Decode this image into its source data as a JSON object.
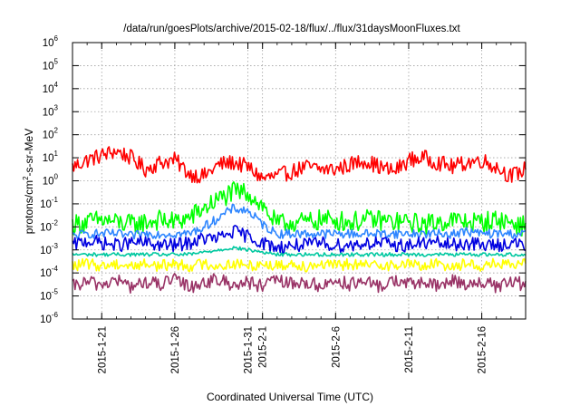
{
  "chart_data": {
    "type": "line",
    "title": "/data/run/goesPlots/archive/2015-02-18/flux/../flux/31daysMoonFluxes.txt",
    "xlabel": "Coordinated Universal Time (UTC)",
    "ylabel": {
      "prefix": "protons/cm",
      "sup": "2",
      "suffix": "-s-sr-MeV"
    },
    "y_scale": "log",
    "ylim": [
      1e-06,
      1000000.0
    ],
    "y_ticks": [
      {
        "base": "10",
        "exp": "-6"
      },
      {
        "base": "10",
        "exp": "-5"
      },
      {
        "base": "10",
        "exp": "-4"
      },
      {
        "base": "10",
        "exp": "-3"
      },
      {
        "base": "10",
        "exp": "-2"
      },
      {
        "base": "10",
        "exp": "-1"
      },
      {
        "base": "10",
        "exp": "0"
      },
      {
        "base": "10",
        "exp": "1"
      },
      {
        "base": "10",
        "exp": "2"
      },
      {
        "base": "10",
        "exp": "3"
      },
      {
        "base": "10",
        "exp": "4"
      },
      {
        "base": "10",
        "exp": "5"
      },
      {
        "base": "10",
        "exp": "6"
      }
    ],
    "xlim": [
      "2015-01-19",
      "2015-02-19"
    ],
    "x_ticks": [
      "2015-1-21",
      "2015-1-26",
      "2015-1-31",
      "2015-2-1",
      "2015-2-6",
      "2015-2-11",
      "2015-2-16"
    ],
    "grid": true,
    "legend": "none",
    "series": [
      {
        "color": "#ff0000",
        "values_log10": [
          0.6,
          0.9,
          1.1,
          1.3,
          1.0,
          0.5,
          0.8,
          0.9,
          0.3,
          0.2,
          0.7,
          0.8,
          0.6,
          0.1,
          0.2,
          0.4,
          0.6,
          0.5,
          0.5,
          0.7,
          0.9,
          0.6,
          0.4,
          0.9,
          1.0,
          0.8,
          0.6,
          0.8,
          0.9,
          0.6,
          0.2,
          0.5
        ]
      },
      {
        "color": "#00ff00",
        "values_log10": [
          -1.9,
          -1.8,
          -1.7,
          -1.8,
          -1.9,
          -1.8,
          -1.7,
          -1.8,
          -1.6,
          -1.2,
          -0.8,
          -0.5,
          -0.5,
          -1.1,
          -1.9,
          -1.8,
          -1.8,
          -1.7,
          -1.7,
          -1.8,
          -1.7,
          -1.7,
          -1.8,
          -1.8,
          -1.9,
          -1.8,
          -1.7,
          -1.8,
          -1.8,
          -1.7,
          -1.8,
          -2.0
        ]
      },
      {
        "color": "#2e86ff",
        "values_log10": [
          -2.4,
          -2.3,
          -2.3,
          -2.3,
          -2.4,
          -2.3,
          -2.3,
          -2.3,
          -2.3,
          -2.0,
          -1.6,
          -1.2,
          -1.3,
          -1.9,
          -2.3,
          -2.3,
          -2.3,
          -2.3,
          -2.3,
          -2.3,
          -2.3,
          -2.3,
          -2.3,
          -2.3,
          -2.3,
          -2.3,
          -2.3,
          -2.2,
          -2.3,
          -2.3,
          -2.3,
          -2.3
        ]
      },
      {
        "color": "#0000e0",
        "values_log10": [
          -2.8,
          -2.6,
          -2.7,
          -2.8,
          -2.7,
          -2.7,
          -2.8,
          -2.8,
          -2.7,
          -2.5,
          -2.5,
          -2.2,
          -2.4,
          -2.7,
          -2.9,
          -2.8,
          -2.8,
          -2.7,
          -2.8,
          -2.8,
          -2.7,
          -2.7,
          -2.8,
          -2.8,
          -2.7,
          -2.7,
          -2.8,
          -2.7,
          -2.8,
          -2.8,
          -2.7,
          -2.8
        ]
      },
      {
        "color": "#00c8a0",
        "values_log10": [
          -3.2,
          -3.2,
          -3.2,
          -3.2,
          -3.2,
          -3.2,
          -3.2,
          -3.2,
          -3.2,
          -3.1,
          -3.0,
          -2.9,
          -3.0,
          -3.1,
          -3.2,
          -3.2,
          -3.2,
          -3.2,
          -3.2,
          -3.2,
          -3.2,
          -3.2,
          -3.2,
          -3.2,
          -3.2,
          -3.2,
          -3.2,
          -3.2,
          -3.2,
          -3.2,
          -3.2,
          -3.2
        ]
      },
      {
        "color": "#ffff00",
        "values_log10": [
          -3.7,
          -3.6,
          -3.7,
          -3.6,
          -3.7,
          -3.6,
          -3.7,
          -3.6,
          -3.7,
          -3.6,
          -3.7,
          -3.6,
          -3.7,
          -3.6,
          -3.7,
          -3.6,
          -3.7,
          -3.6,
          -3.7,
          -3.6,
          -3.7,
          -3.6,
          -3.7,
          -3.6,
          -3.7,
          -3.6,
          -3.7,
          -3.6,
          -3.7,
          -3.6,
          -3.7,
          -3.6
        ]
      },
      {
        "color": "#993366",
        "values_log10": [
          -4.6,
          -4.4,
          -4.5,
          -4.3,
          -4.6,
          -4.4,
          -4.5,
          -4.3,
          -4.6,
          -4.4,
          -4.3,
          -4.5,
          -4.4,
          -4.6,
          -4.3,
          -4.5,
          -4.4,
          -4.6,
          -4.3,
          -4.5,
          -4.4,
          -4.6,
          -4.3,
          -4.5,
          -4.4,
          -4.6,
          -4.3,
          -4.5,
          -4.4,
          -4.6,
          -4.4,
          -4.5
        ]
      }
    ]
  }
}
